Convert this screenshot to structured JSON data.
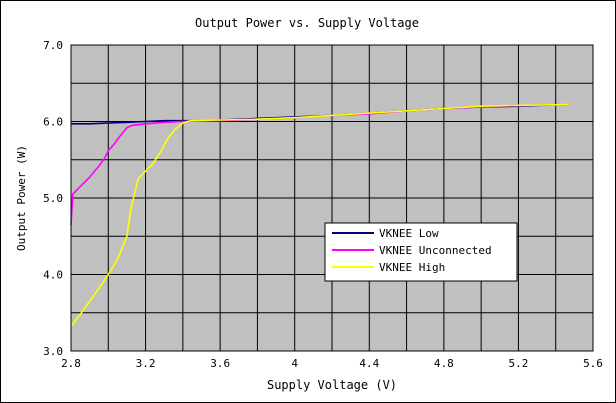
{
  "chart_data": {
    "type": "line",
    "title": "Output Power vs. Supply Voltage",
    "xlabel": "Supply Voltage (V)",
    "ylabel": "Output Power (W)",
    "xlim": [
      2.8,
      5.6
    ],
    "ylim": [
      3.0,
      7.0
    ],
    "x_major_ticks": [
      2.8,
      3.2,
      3.6,
      4.0,
      4.4,
      4.8,
      5.2,
      5.6
    ],
    "x_tick_labels": [
      "2.8",
      "3.2",
      "3.6",
      "4",
      "4.4",
      "4.8",
      "5.2",
      "5.6"
    ],
    "x_minor_step": 0.2,
    "y_major_ticks": [
      3.0,
      4.0,
      5.0,
      6.0,
      7.0
    ],
    "y_tick_labels": [
      "3.0",
      "4.0",
      "5.0",
      "6.0",
      "7.0"
    ],
    "y_minor_step": 0.5,
    "grid": true,
    "plot_background": "#c0c0c0",
    "legend_position": "lower-right",
    "series": [
      {
        "name": "VKNEE Low",
        "color": "#000080",
        "points": [
          [
            2.8,
            5.97
          ],
          [
            2.9,
            5.97
          ],
          [
            3.0,
            5.98
          ],
          [
            3.1,
            5.99
          ],
          [
            3.2,
            6.0
          ],
          [
            3.3,
            6.01
          ],
          [
            3.4,
            6.01
          ],
          [
            3.5,
            6.01
          ],
          [
            3.6,
            6.02
          ],
          [
            3.8,
            6.04
          ],
          [
            4.0,
            6.06
          ],
          [
            4.2,
            6.08
          ],
          [
            4.4,
            6.11
          ],
          [
            4.6,
            6.14
          ],
          [
            4.8,
            6.17
          ],
          [
            5.0,
            6.19
          ],
          [
            5.2,
            6.2
          ],
          [
            5.4,
            6.22
          ],
          [
            5.48,
            6.23
          ]
        ]
      },
      {
        "name": "VKNEE Unconnected",
        "color": "#ff00ff",
        "points": [
          [
            2.8,
            4.65
          ],
          [
            2.81,
            5.05
          ],
          [
            2.85,
            5.15
          ],
          [
            2.9,
            5.27
          ],
          [
            2.95,
            5.42
          ],
          [
            2.98,
            5.52
          ],
          [
            3.0,
            5.62
          ],
          [
            3.03,
            5.7
          ],
          [
            3.06,
            5.8
          ],
          [
            3.1,
            5.92
          ],
          [
            3.13,
            5.95
          ],
          [
            3.2,
            5.97
          ],
          [
            3.3,
            5.99
          ],
          [
            3.4,
            6.0
          ],
          [
            3.6,
            6.01
          ],
          [
            3.8,
            6.03
          ],
          [
            4.0,
            6.05
          ],
          [
            4.2,
            6.08
          ],
          [
            4.4,
            6.1
          ],
          [
            4.6,
            6.14
          ],
          [
            4.8,
            6.17
          ],
          [
            5.0,
            6.19
          ],
          [
            5.2,
            6.21
          ],
          [
            5.4,
            6.22
          ],
          [
            5.48,
            6.23
          ]
        ]
      },
      {
        "name": "VKNEE High",
        "color": "#ffff00",
        "points": [
          [
            2.8,
            3.32
          ],
          [
            2.85,
            3.48
          ],
          [
            2.9,
            3.65
          ],
          [
            2.95,
            3.82
          ],
          [
            3.0,
            4.0
          ],
          [
            3.05,
            4.2
          ],
          [
            3.08,
            4.38
          ],
          [
            3.1,
            4.5
          ],
          [
            3.12,
            4.85
          ],
          [
            3.14,
            5.05
          ],
          [
            3.16,
            5.25
          ],
          [
            3.2,
            5.35
          ],
          [
            3.24,
            5.45
          ],
          [
            3.28,
            5.6
          ],
          [
            3.32,
            5.78
          ],
          [
            3.36,
            5.9
          ],
          [
            3.4,
            5.98
          ],
          [
            3.44,
            6.01
          ],
          [
            3.6,
            6.02
          ],
          [
            3.8,
            6.03
          ],
          [
            4.0,
            6.05
          ],
          [
            4.2,
            6.08
          ],
          [
            4.4,
            6.11
          ],
          [
            4.6,
            6.14
          ],
          [
            4.8,
            6.17
          ],
          [
            5.0,
            6.2
          ],
          [
            5.2,
            6.21
          ],
          [
            5.4,
            6.22
          ],
          [
            5.48,
            6.23
          ]
        ]
      }
    ]
  }
}
